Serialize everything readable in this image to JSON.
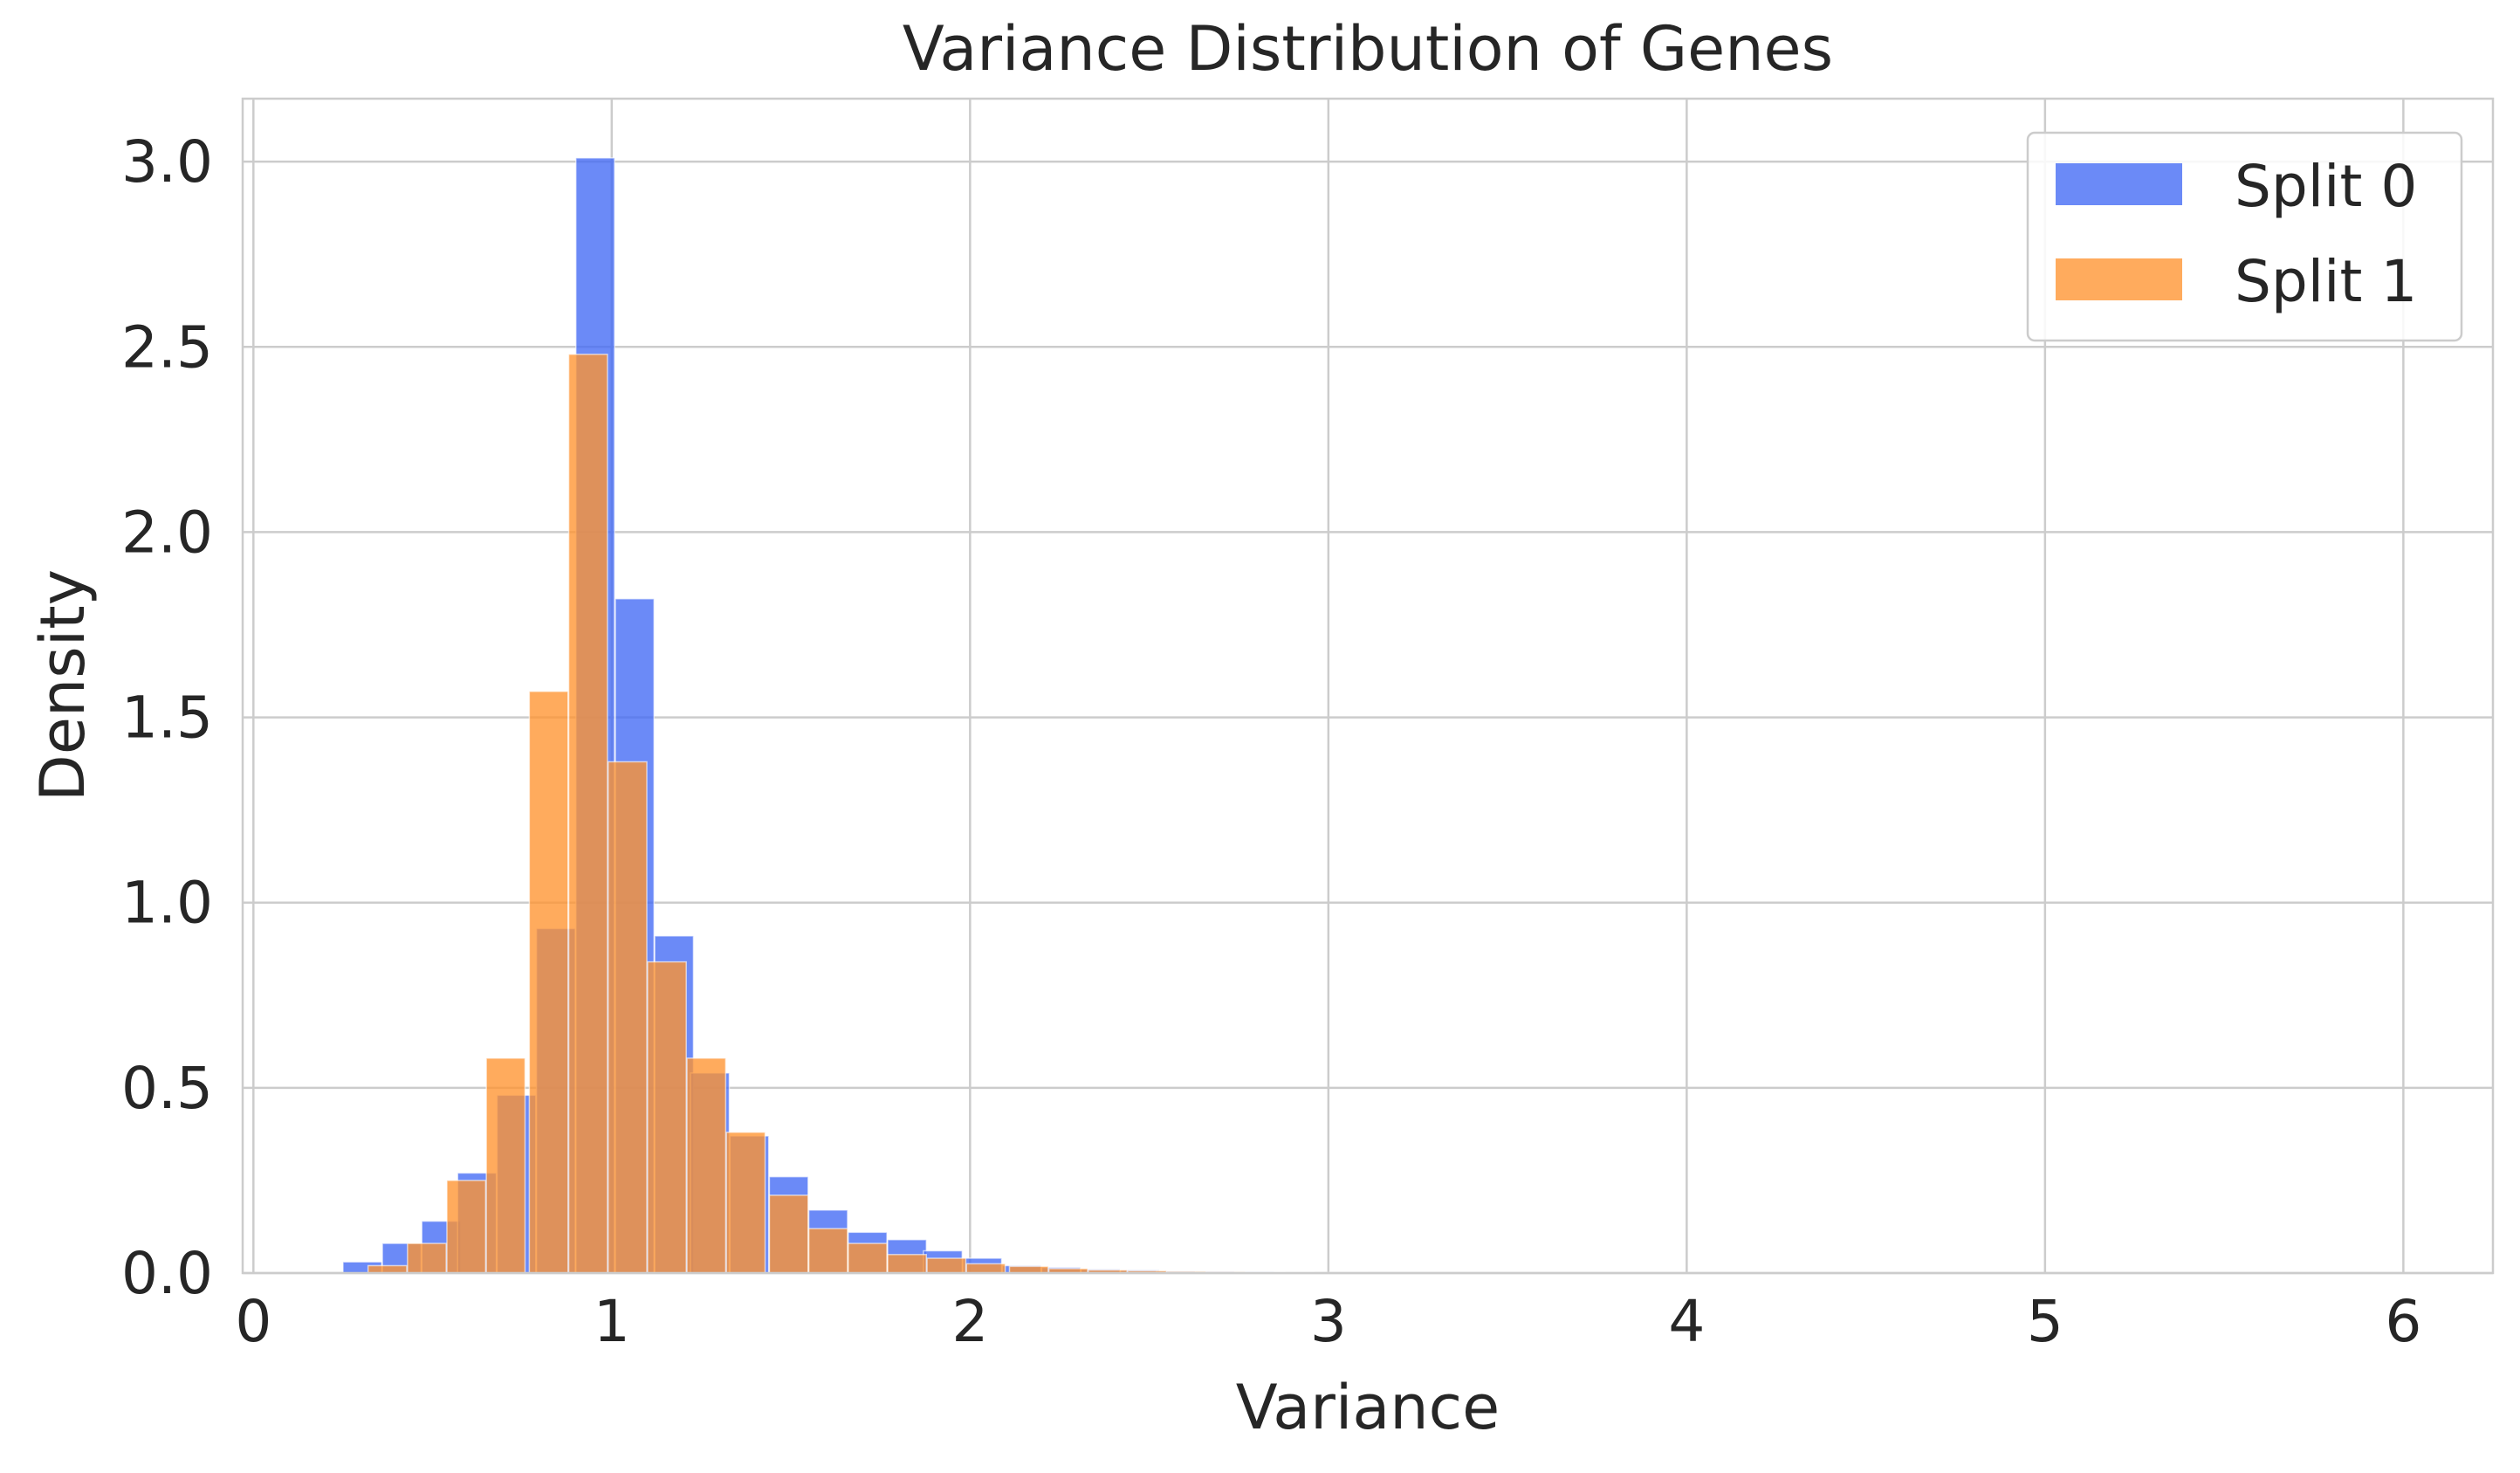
{
  "chart_data": {
    "type": "bar",
    "title": "Variance Distribution of Genes",
    "xlabel": "Variance",
    "ylabel": "Density",
    "xlim": [
      -0.03,
      6.25
    ],
    "ylim": [
      0,
      3.17
    ],
    "xticks": [
      0,
      1,
      2,
      3,
      4,
      5,
      6
    ],
    "yticks": [
      0.0,
      0.5,
      1.0,
      1.5,
      2.0,
      2.5,
      3.0
    ],
    "xtick_labels": [
      "0",
      "1",
      "2",
      "3",
      "4",
      "5",
      "6"
    ],
    "ytick_labels": [
      "0.0",
      "0.5",
      "1.0",
      "1.5",
      "2.0",
      "2.5",
      "3.0"
    ],
    "grid": true,
    "legend_position": "top-right",
    "bin_width": 0.108,
    "series": [
      {
        "name": "Split 0",
        "color": "#4169f5",
        "bin_starts": [
          0.25,
          0.36,
          0.47,
          0.57,
          0.68,
          0.79,
          0.9,
          1.01,
          1.12,
          1.22,
          1.33,
          1.44,
          1.55,
          1.66,
          1.77,
          1.87,
          1.98,
          2.09,
          2.2,
          2.31,
          2.42,
          2.52,
          2.63,
          2.74,
          2.85,
          2.96
        ],
        "values": [
          0.03,
          0.08,
          0.14,
          0.27,
          0.48,
          0.93,
          3.01,
          1.82,
          0.91,
          0.54,
          0.37,
          0.26,
          0.17,
          0.11,
          0.09,
          0.06,
          0.04,
          0.02,
          0.015,
          0.01,
          0.008,
          0.005,
          0.004,
          0.003,
          0.002,
          0.001
        ]
      },
      {
        "name": "Split 1",
        "color": "#ff9430",
        "bin_starts": [
          0.32,
          0.43,
          0.54,
          0.65,
          0.77,
          0.88,
          0.99,
          1.1,
          1.21,
          1.32,
          1.44,
          1.55,
          1.66,
          1.77,
          1.88,
          1.99,
          2.11,
          2.22,
          2.33,
          2.44,
          2.55,
          2.66,
          2.77,
          2.89,
          3.0
        ],
        "values": [
          0.02,
          0.08,
          0.25,
          0.58,
          1.57,
          2.48,
          1.38,
          0.84,
          0.58,
          0.38,
          0.21,
          0.12,
          0.08,
          0.05,
          0.04,
          0.025,
          0.018,
          0.012,
          0.008,
          0.006,
          0.004,
          0.003,
          0.002,
          0.001,
          0.001
        ]
      }
    ]
  }
}
